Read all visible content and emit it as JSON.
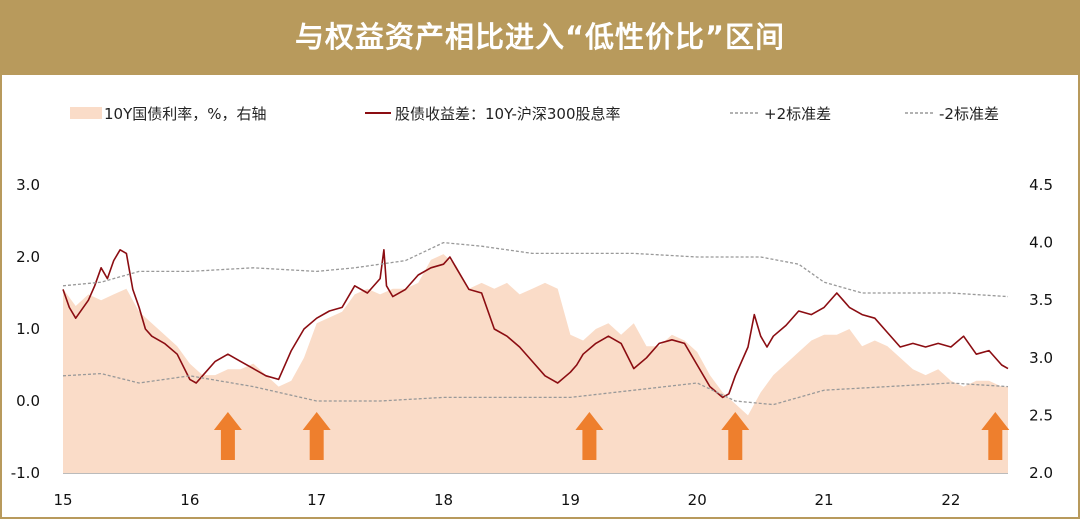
{
  "banner": {
    "title": "与权益资产相比进入“低性价比”区间"
  },
  "colors": {
    "banner": "#b89a5c",
    "yield_area": "#fadcc8",
    "spread_line": "#8b0d12",
    "std_band": "#999999",
    "arrow": "#ee7f2d"
  },
  "chart_data": {
    "type": "line",
    "legend_position": "top",
    "grid": false,
    "x_tick_labels": [
      "15",
      "16",
      "17",
      "18",
      "19",
      "20",
      "21",
      "22"
    ],
    "x_range": [
      2015.0,
      2022.45
    ],
    "y_left_range": [
      -1.0,
      3.0
    ],
    "y_left_ticks": [
      "-1.0",
      "0.0",
      "1.0",
      "2.0",
      "3.0"
    ],
    "y_right_range": [
      2.0,
      4.5
    ],
    "y_right_ticks": [
      "2.0",
      "2.5",
      "3.0",
      "3.5",
      "4.0",
      "4.5"
    ],
    "legend": [
      {
        "key": "yield",
        "label": "10Y国债利率，%，右轴"
      },
      {
        "key": "spread",
        "label": "股债收益差：10Y-沪深300股息率"
      },
      {
        "key": "plus2",
        "label": "+2标准差"
      },
      {
        "key": "minus2",
        "label": "-2标准差"
      }
    ],
    "series": [
      {
        "name": "10Y国债利率，%，右轴",
        "axis": "right",
        "type": "area",
        "x": [
          2015.0,
          2015.1,
          2015.2,
          2015.3,
          2015.4,
          2015.5,
          2015.6,
          2015.7,
          2015.8,
          2015.9,
          2016.0,
          2016.1,
          2016.2,
          2016.3,
          2016.4,
          2016.5,
          2016.6,
          2016.7,
          2016.8,
          2016.9,
          2017.0,
          2017.1,
          2017.2,
          2017.3,
          2017.4,
          2017.5,
          2017.6,
          2017.7,
          2017.8,
          2017.9,
          2018.0,
          2018.1,
          2018.2,
          2018.3,
          2018.4,
          2018.5,
          2018.6,
          2018.7,
          2018.8,
          2018.9,
          2019.0,
          2019.1,
          2019.2,
          2019.3,
          2019.4,
          2019.5,
          2019.6,
          2019.7,
          2019.8,
          2019.9,
          2020.0,
          2020.1,
          2020.2,
          2020.3,
          2020.4,
          2020.5,
          2020.6,
          2020.7,
          2020.8,
          2020.9,
          2021.0,
          2021.1,
          2021.2,
          2021.3,
          2021.4,
          2021.5,
          2021.6,
          2021.7,
          2021.8,
          2021.9,
          2022.0,
          2022.1,
          2022.2,
          2022.3,
          2022.4,
          2022.45
        ],
        "values": [
          3.6,
          3.45,
          3.55,
          3.5,
          3.55,
          3.6,
          3.4,
          3.3,
          3.2,
          3.1,
          2.95,
          2.85,
          2.85,
          2.9,
          2.9,
          2.95,
          2.85,
          2.75,
          2.8,
          3.0,
          3.3,
          3.35,
          3.4,
          3.55,
          3.6,
          3.55,
          3.6,
          3.6,
          3.65,
          3.85,
          3.9,
          3.8,
          3.6,
          3.65,
          3.6,
          3.65,
          3.55,
          3.6,
          3.65,
          3.6,
          3.2,
          3.15,
          3.25,
          3.3,
          3.2,
          3.3,
          3.1,
          3.1,
          3.2,
          3.15,
          3.05,
          2.85,
          2.7,
          2.6,
          2.5,
          2.7,
          2.85,
          2.95,
          3.05,
          3.15,
          3.2,
          3.2,
          3.25,
          3.1,
          3.15,
          3.1,
          3.0,
          2.9,
          2.85,
          2.9,
          2.8,
          2.75,
          2.8,
          2.8,
          2.75,
          2.75
        ]
      },
      {
        "name": "股债收益差：10Y-沪深300股息率",
        "axis": "left",
        "type": "line",
        "x": [
          2015.0,
          2015.05,
          2015.1,
          2015.2,
          2015.25,
          2015.3,
          2015.35,
          2015.4,
          2015.45,
          2015.5,
          2015.55,
          2015.6,
          2015.65,
          2015.7,
          2015.8,
          2015.9,
          2016.0,
          2016.05,
          2016.1,
          2016.2,
          2016.3,
          2016.4,
          2016.5,
          2016.6,
          2016.7,
          2016.8,
          2016.9,
          2017.0,
          2017.1,
          2017.2,
          2017.3,
          2017.4,
          2017.5,
          2017.53,
          2017.55,
          2017.6,
          2017.7,
          2017.8,
          2017.9,
          2018.0,
          2018.05,
          2018.1,
          2018.2,
          2018.3,
          2018.4,
          2018.5,
          2018.6,
          2018.7,
          2018.8,
          2018.9,
          2019.0,
          2019.05,
          2019.1,
          2019.2,
          2019.3,
          2019.4,
          2019.5,
          2019.6,
          2019.7,
          2019.8,
          2019.9,
          2020.0,
          2020.1,
          2020.2,
          2020.25,
          2020.3,
          2020.4,
          2020.45,
          2020.5,
          2020.55,
          2020.6,
          2020.7,
          2020.8,
          2020.9,
          2021.0,
          2021.1,
          2021.15,
          2021.2,
          2021.3,
          2021.4,
          2021.5,
          2021.6,
          2021.7,
          2021.8,
          2021.9,
          2022.0,
          2022.1,
          2022.2,
          2022.3,
          2022.4,
          2022.45
        ],
        "values": [
          1.55,
          1.3,
          1.15,
          1.4,
          1.6,
          1.85,
          1.7,
          1.95,
          2.1,
          2.05,
          1.55,
          1.3,
          1.0,
          0.9,
          0.8,
          0.65,
          0.3,
          0.25,
          0.35,
          0.55,
          0.65,
          0.55,
          0.45,
          0.35,
          0.3,
          0.7,
          1.0,
          1.15,
          1.25,
          1.3,
          1.6,
          1.5,
          1.7,
          2.1,
          1.6,
          1.45,
          1.55,
          1.75,
          1.85,
          1.9,
          2.0,
          1.85,
          1.55,
          1.5,
          1.0,
          0.9,
          0.75,
          0.55,
          0.35,
          0.25,
          0.4,
          0.5,
          0.65,
          0.8,
          0.9,
          0.8,
          0.45,
          0.6,
          0.8,
          0.85,
          0.8,
          0.5,
          0.2,
          0.05,
          0.1,
          0.35,
          0.75,
          1.2,
          0.9,
          0.75,
          0.9,
          1.05,
          1.25,
          1.2,
          1.3,
          1.5,
          1.4,
          1.3,
          1.2,
          1.15,
          0.95,
          0.75,
          0.8,
          0.75,
          0.8,
          0.75,
          0.9,
          0.65,
          0.7,
          0.5,
          0.45
        ]
      },
      {
        "name": "+2标准差",
        "axis": "left",
        "type": "line",
        "dash": true,
        "x": [
          2015.0,
          2015.3,
          2015.6,
          2016.0,
          2016.5,
          2017.0,
          2017.3,
          2017.7,
          2018.0,
          2018.3,
          2018.7,
          2019.0,
          2019.5,
          2020.0,
          2020.5,
          2020.8,
          2021.0,
          2021.3,
          2021.6,
          2022.0,
          2022.45
        ],
        "values": [
          1.6,
          1.65,
          1.8,
          1.8,
          1.85,
          1.8,
          1.85,
          1.95,
          2.2,
          2.15,
          2.05,
          2.05,
          2.05,
          2.0,
          2.0,
          1.9,
          1.65,
          1.5,
          1.5,
          1.5,
          1.45
        ]
      },
      {
        "name": "-2标准差",
        "axis": "left",
        "type": "line",
        "dash": true,
        "x": [
          2015.0,
          2015.3,
          2015.6,
          2016.0,
          2016.5,
          2017.0,
          2017.5,
          2018.0,
          2018.5,
          2019.0,
          2019.5,
          2020.0,
          2020.3,
          2020.6,
          2021.0,
          2021.5,
          2022.0,
          2022.45
        ],
        "values": [
          0.35,
          0.38,
          0.25,
          0.35,
          0.2,
          0.0,
          0.0,
          0.05,
          0.05,
          0.05,
          0.15,
          0.25,
          0.0,
          -0.05,
          0.15,
          0.2,
          0.25,
          0.2
        ]
      }
    ],
    "annotations": {
      "arrows_x": [
        2016.3,
        2017.0,
        2019.15,
        2020.3,
        2022.35
      ]
    }
  }
}
